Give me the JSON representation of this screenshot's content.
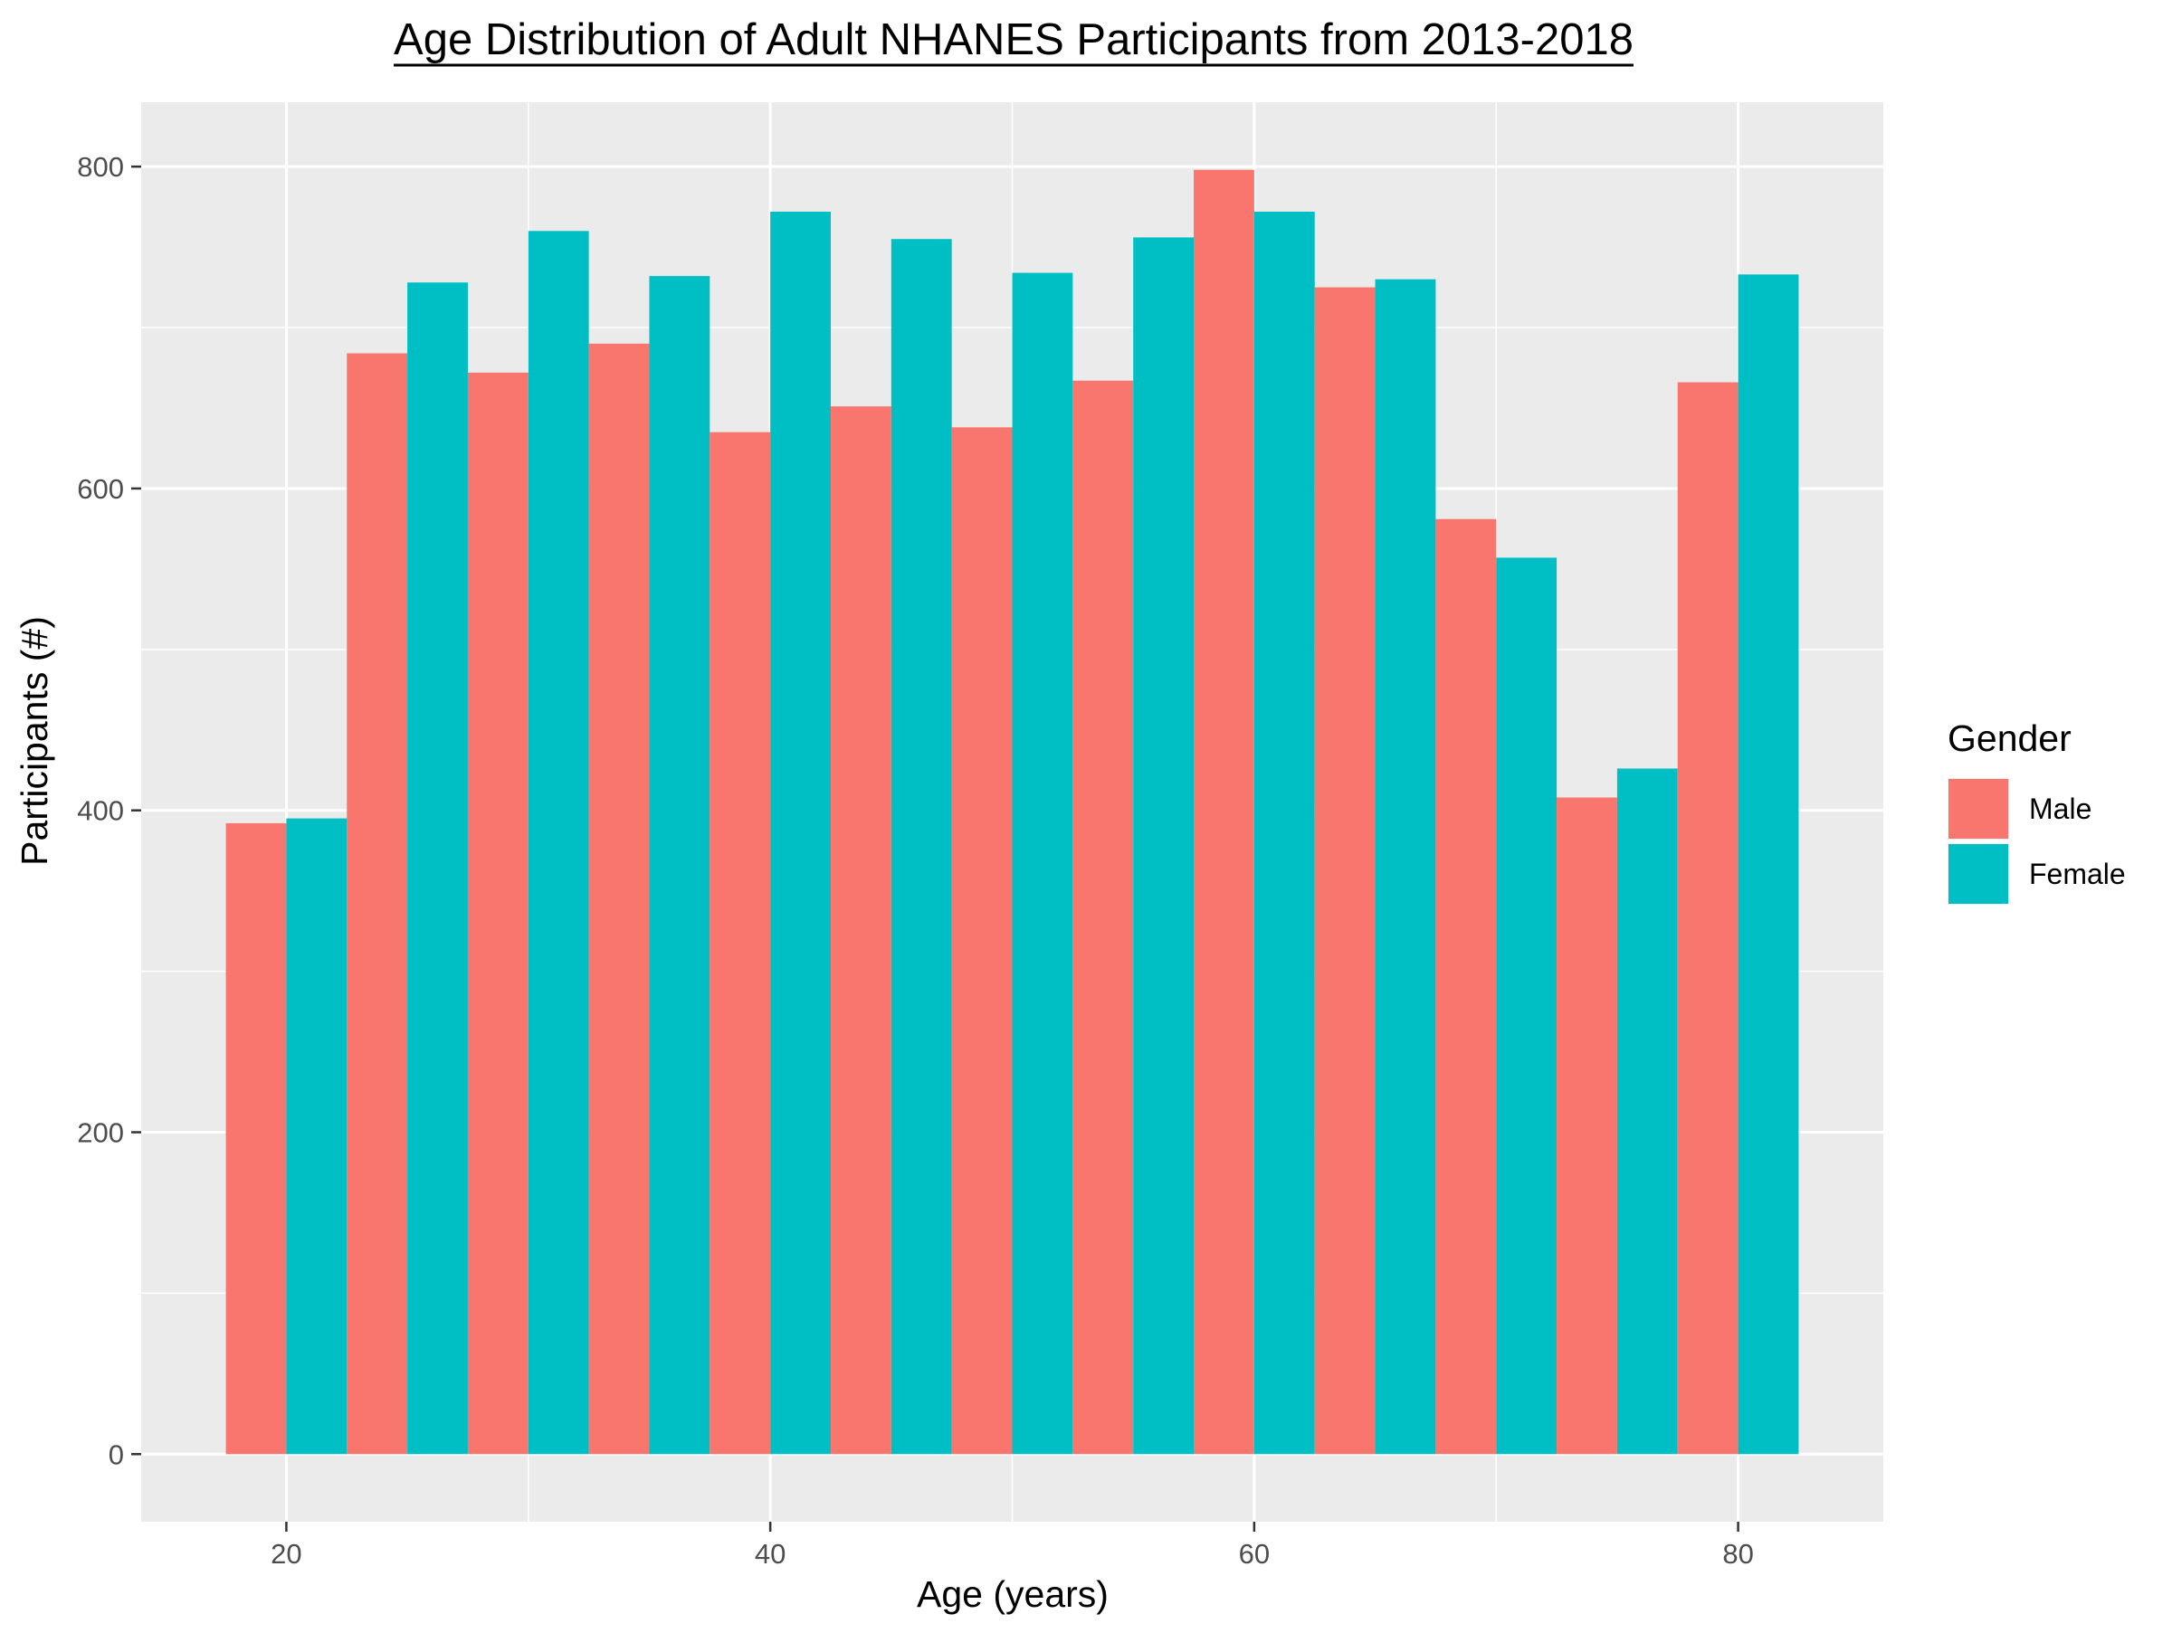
{
  "chart_data": {
    "type": "bar",
    "title": "Age Distribution of Adult NHANES Participants from 2013-2018",
    "xlabel": "Age (years)",
    "ylabel": "Participants (#)",
    "xlim": [
      14,
      86
    ],
    "ylim": [
      -42,
      840
    ],
    "x_ticks": [
      20,
      40,
      60,
      80
    ],
    "y_ticks": [
      0,
      200,
      400,
      600,
      800
    ],
    "bin_width": 5,
    "bins": [
      [
        17.5,
        22.5
      ],
      [
        22.5,
        27.5
      ],
      [
        27.5,
        32.5
      ],
      [
        32.5,
        37.5
      ],
      [
        37.5,
        42.5
      ],
      [
        42.5,
        47.5
      ],
      [
        47.5,
        52.5
      ],
      [
        52.5,
        57.5
      ],
      [
        57.5,
        62.5
      ],
      [
        62.5,
        67.5
      ],
      [
        67.5,
        72.5
      ],
      [
        72.5,
        77.5
      ],
      [
        77.5,
        82.5
      ]
    ],
    "grid": true,
    "legend_title": "Gender",
    "legend_position": "right",
    "series": [
      {
        "name": "Male",
        "color": "#F8766D",
        "values": [
          392,
          684,
          672,
          690,
          635,
          651,
          638,
          667,
          798,
          725,
          581,
          408,
          666
        ]
      },
      {
        "name": "Female",
        "color": "#00BFC4",
        "values": [
          395,
          728,
          760,
          732,
          772,
          755,
          734,
          756,
          772,
          730,
          557,
          426,
          733
        ]
      }
    ]
  }
}
